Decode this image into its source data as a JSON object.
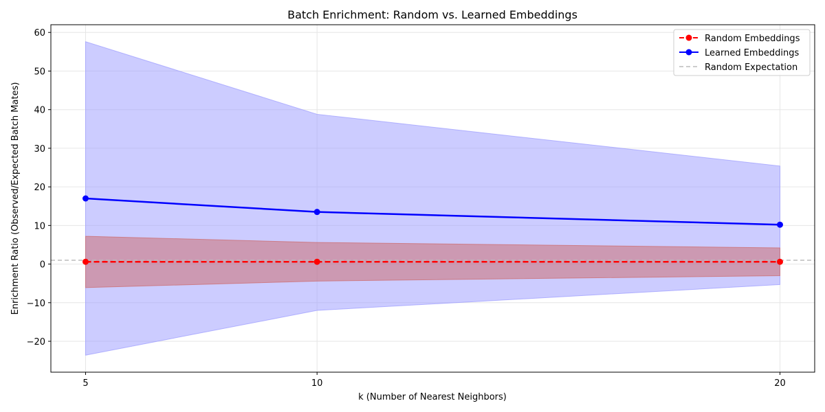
{
  "chart_data": {
    "type": "line",
    "title": "Batch Enrichment: Random vs. Learned Embeddings",
    "xlabel": "k (Number of Nearest Neighbors)",
    "ylabel": "Enrichment Ratio (Observed/Expected Batch Mates)",
    "x": [
      5,
      10,
      20
    ],
    "x_ticks": [
      "5",
      "10",
      "20"
    ],
    "y_ticks": [
      "−20",
      "−10",
      "0",
      "10",
      "20",
      "30",
      "40",
      "50",
      "60"
    ],
    "xlim": [
      4.25,
      20.75
    ],
    "ylim": [
      -28,
      62
    ],
    "grid": true,
    "legend_position": "top-right",
    "series": [
      {
        "name": "Random Embeddings",
        "color": "#ff0000",
        "line_style": "dashed",
        "marker": "circle",
        "values": [
          0.6,
          0.6,
          0.6
        ],
        "band_lower": [
          -6.1,
          -4.4,
          -3.0
        ],
        "band_upper": [
          7.2,
          5.6,
          4.2
        ],
        "band_color": "#cc6666"
      },
      {
        "name": "Learned Embeddings",
        "color": "#0000ff",
        "line_style": "solid",
        "marker": "circle",
        "values": [
          17.0,
          13.5,
          10.2
        ],
        "band_lower": [
          -23.6,
          -12.0,
          -5.3
        ],
        "band_upper": [
          57.6,
          38.8,
          25.4
        ],
        "band_color": "#9999ff"
      }
    ],
    "reference_lines": [
      {
        "name": "Random Expectation",
        "y": 1,
        "color": "#bbbbbb",
        "line_style": "dashed"
      }
    ]
  }
}
